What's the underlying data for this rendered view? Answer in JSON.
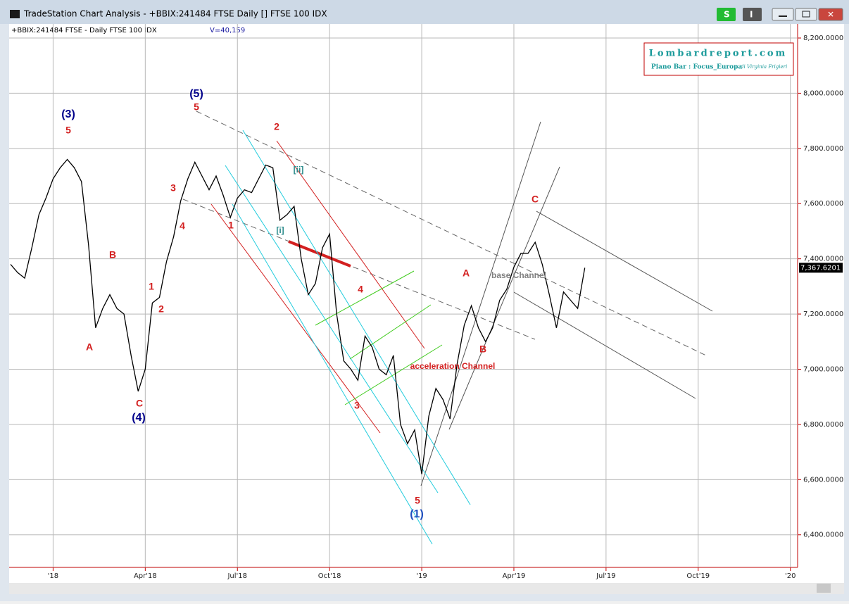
{
  "window": {
    "title": "TradeStation Chart Analysis - +BBIX:241484 FTSE Daily [] FTSE 100 IDX",
    "button_s": "S",
    "button_i": "I"
  },
  "header": {
    "symbol": "+BBIX:241484 FTSE - Daily  FTSE 100 IDX",
    "volume": "V=40,159"
  },
  "logo": {
    "site": "Lombardreport.com",
    "subtitle": "Piano Bar : Focus_Europa",
    "author": "di Virginia Frigieri"
  },
  "chart_data": {
    "type": "line",
    "color": "#000000",
    "categories": [
      null,
      null,
      null,
      null,
      null,
      null,
      "'18",
      null,
      null,
      null,
      null,
      null,
      null,
      null,
      null,
      null,
      null,
      null,
      null,
      "Apr'18",
      null,
      null,
      null,
      null,
      null,
      null,
      null,
      null,
      null,
      null,
      null,
      null,
      "Jul'18",
      null,
      null,
      null,
      null,
      null,
      null,
      null,
      null,
      null,
      null,
      null,
      null,
      "Oct'18",
      null,
      null,
      null,
      null,
      null,
      null,
      null,
      null,
      null,
      null,
      null,
      null,
      "'19",
      null,
      null,
      null,
      null,
      null,
      null,
      null,
      null,
      null,
      null,
      null,
      null,
      "Apr'19",
      null,
      null,
      null,
      null,
      null,
      null,
      null,
      null,
      null,
      null,
      null,
      null,
      "Jul'19",
      null,
      null,
      null,
      null,
      null,
      null,
      null,
      null,
      null,
      null,
      null,
      null,
      "Oct'19",
      null,
      null,
      null,
      null,
      null,
      null,
      null,
      null,
      null,
      null,
      null,
      null,
      "'20",
      null
    ],
    "values": [
      7380,
      7350,
      7330,
      7440,
      7560,
      7620,
      7690,
      7730,
      7760,
      7730,
      7680,
      7450,
      7150,
      7220,
      7270,
      7220,
      7200,
      7050,
      6920,
      7000,
      7240,
      7260,
      7390,
      7480,
      7610,
      7690,
      7750,
      7700,
      7650,
      7700,
      7630,
      7550,
      7620,
      7650,
      7640,
      7690,
      7740,
      7730,
      7540,
      7560,
      7590,
      7400,
      7270,
      7310,
      7440,
      7490,
      7200,
      7030,
      7000,
      6960,
      7120,
      7080,
      7000,
      6980,
      7050,
      6800,
      6730,
      6780,
      6620,
      6830,
      6930,
      6890,
      6820,
      7020,
      7160,
      7230,
      7150,
      7100,
      7150,
      7250,
      7290,
      7370,
      7420,
      7420,
      7460,
      7380,
      7270,
      7150,
      7280,
      7250,
      7220,
      7367.6201,
      null,
      null,
      null,
      null,
      null,
      null,
      null,
      null,
      null,
      null,
      null,
      null,
      null,
      null,
      null,
      null,
      null,
      null,
      null,
      null,
      null,
      null,
      null,
      null,
      null,
      null,
      null,
      null,
      null,
      null
    ],
    "ylim": [
      6282,
      8251
    ],
    "yticks": [
      {
        "value": 6400,
        "label": "6,400.0000"
      },
      {
        "value": 6600,
        "label": "6,600.0000"
      },
      {
        "value": 6800,
        "label": "6,800.0000"
      },
      {
        "value": 7000,
        "label": "7,000.0000"
      },
      {
        "value": 7200,
        "label": "7,200.0000"
      },
      {
        "value": 7400,
        "label": "7,400.0000"
      },
      {
        "value": 7600,
        "label": "7,600.0000"
      },
      {
        "value": 7800,
        "label": "7,800.0000"
      },
      {
        "value": 8000,
        "label": "8,000.0000"
      },
      {
        "value": 8200,
        "label": "8,200.0000"
      }
    ],
    "last_price": {
      "value": 7367.6201,
      "label": "7,367.6201"
    },
    "grid": true,
    "annotations": [
      {
        "text": "(3)",
        "color": "#00008b"
      },
      {
        "text": "5",
        "color": "#d32020"
      },
      {
        "text": "(5)",
        "color": "#00008b"
      },
      {
        "text": "5",
        "color": "#d32020"
      },
      {
        "text": "3",
        "color": "#d32020"
      },
      {
        "text": "4",
        "color": "#d32020"
      },
      {
        "text": "1",
        "color": "#d32020"
      },
      {
        "text": "2",
        "color": "#d32020"
      },
      {
        "text": "[ii]",
        "color": "#2a8a8a"
      },
      {
        "text": "[i]",
        "color": "#2a8a8a"
      },
      {
        "text": "B",
        "color": "#d32020"
      },
      {
        "text": "A",
        "color": "#d32020"
      },
      {
        "text": "1",
        "color": "#d32020"
      },
      {
        "text": "2",
        "color": "#d32020"
      },
      {
        "text": "C",
        "color": "#d32020"
      },
      {
        "text": "(4)",
        "color": "#00008b"
      },
      {
        "text": "4",
        "color": "#d32020"
      },
      {
        "text": "3",
        "color": "#d32020"
      },
      {
        "text": "5",
        "color": "#d32020"
      },
      {
        "text": "(1)",
        "color": "#1f4fbf"
      },
      {
        "text": "A",
        "color": "#d32020"
      },
      {
        "text": "B",
        "color": "#d32020"
      },
      {
        "text": "C",
        "color": "#d32020"
      },
      {
        "text": "acceleration Channel",
        "color": "#d32020"
      },
      {
        "text": "base Channel",
        "color": "#808080"
      }
    ]
  }
}
